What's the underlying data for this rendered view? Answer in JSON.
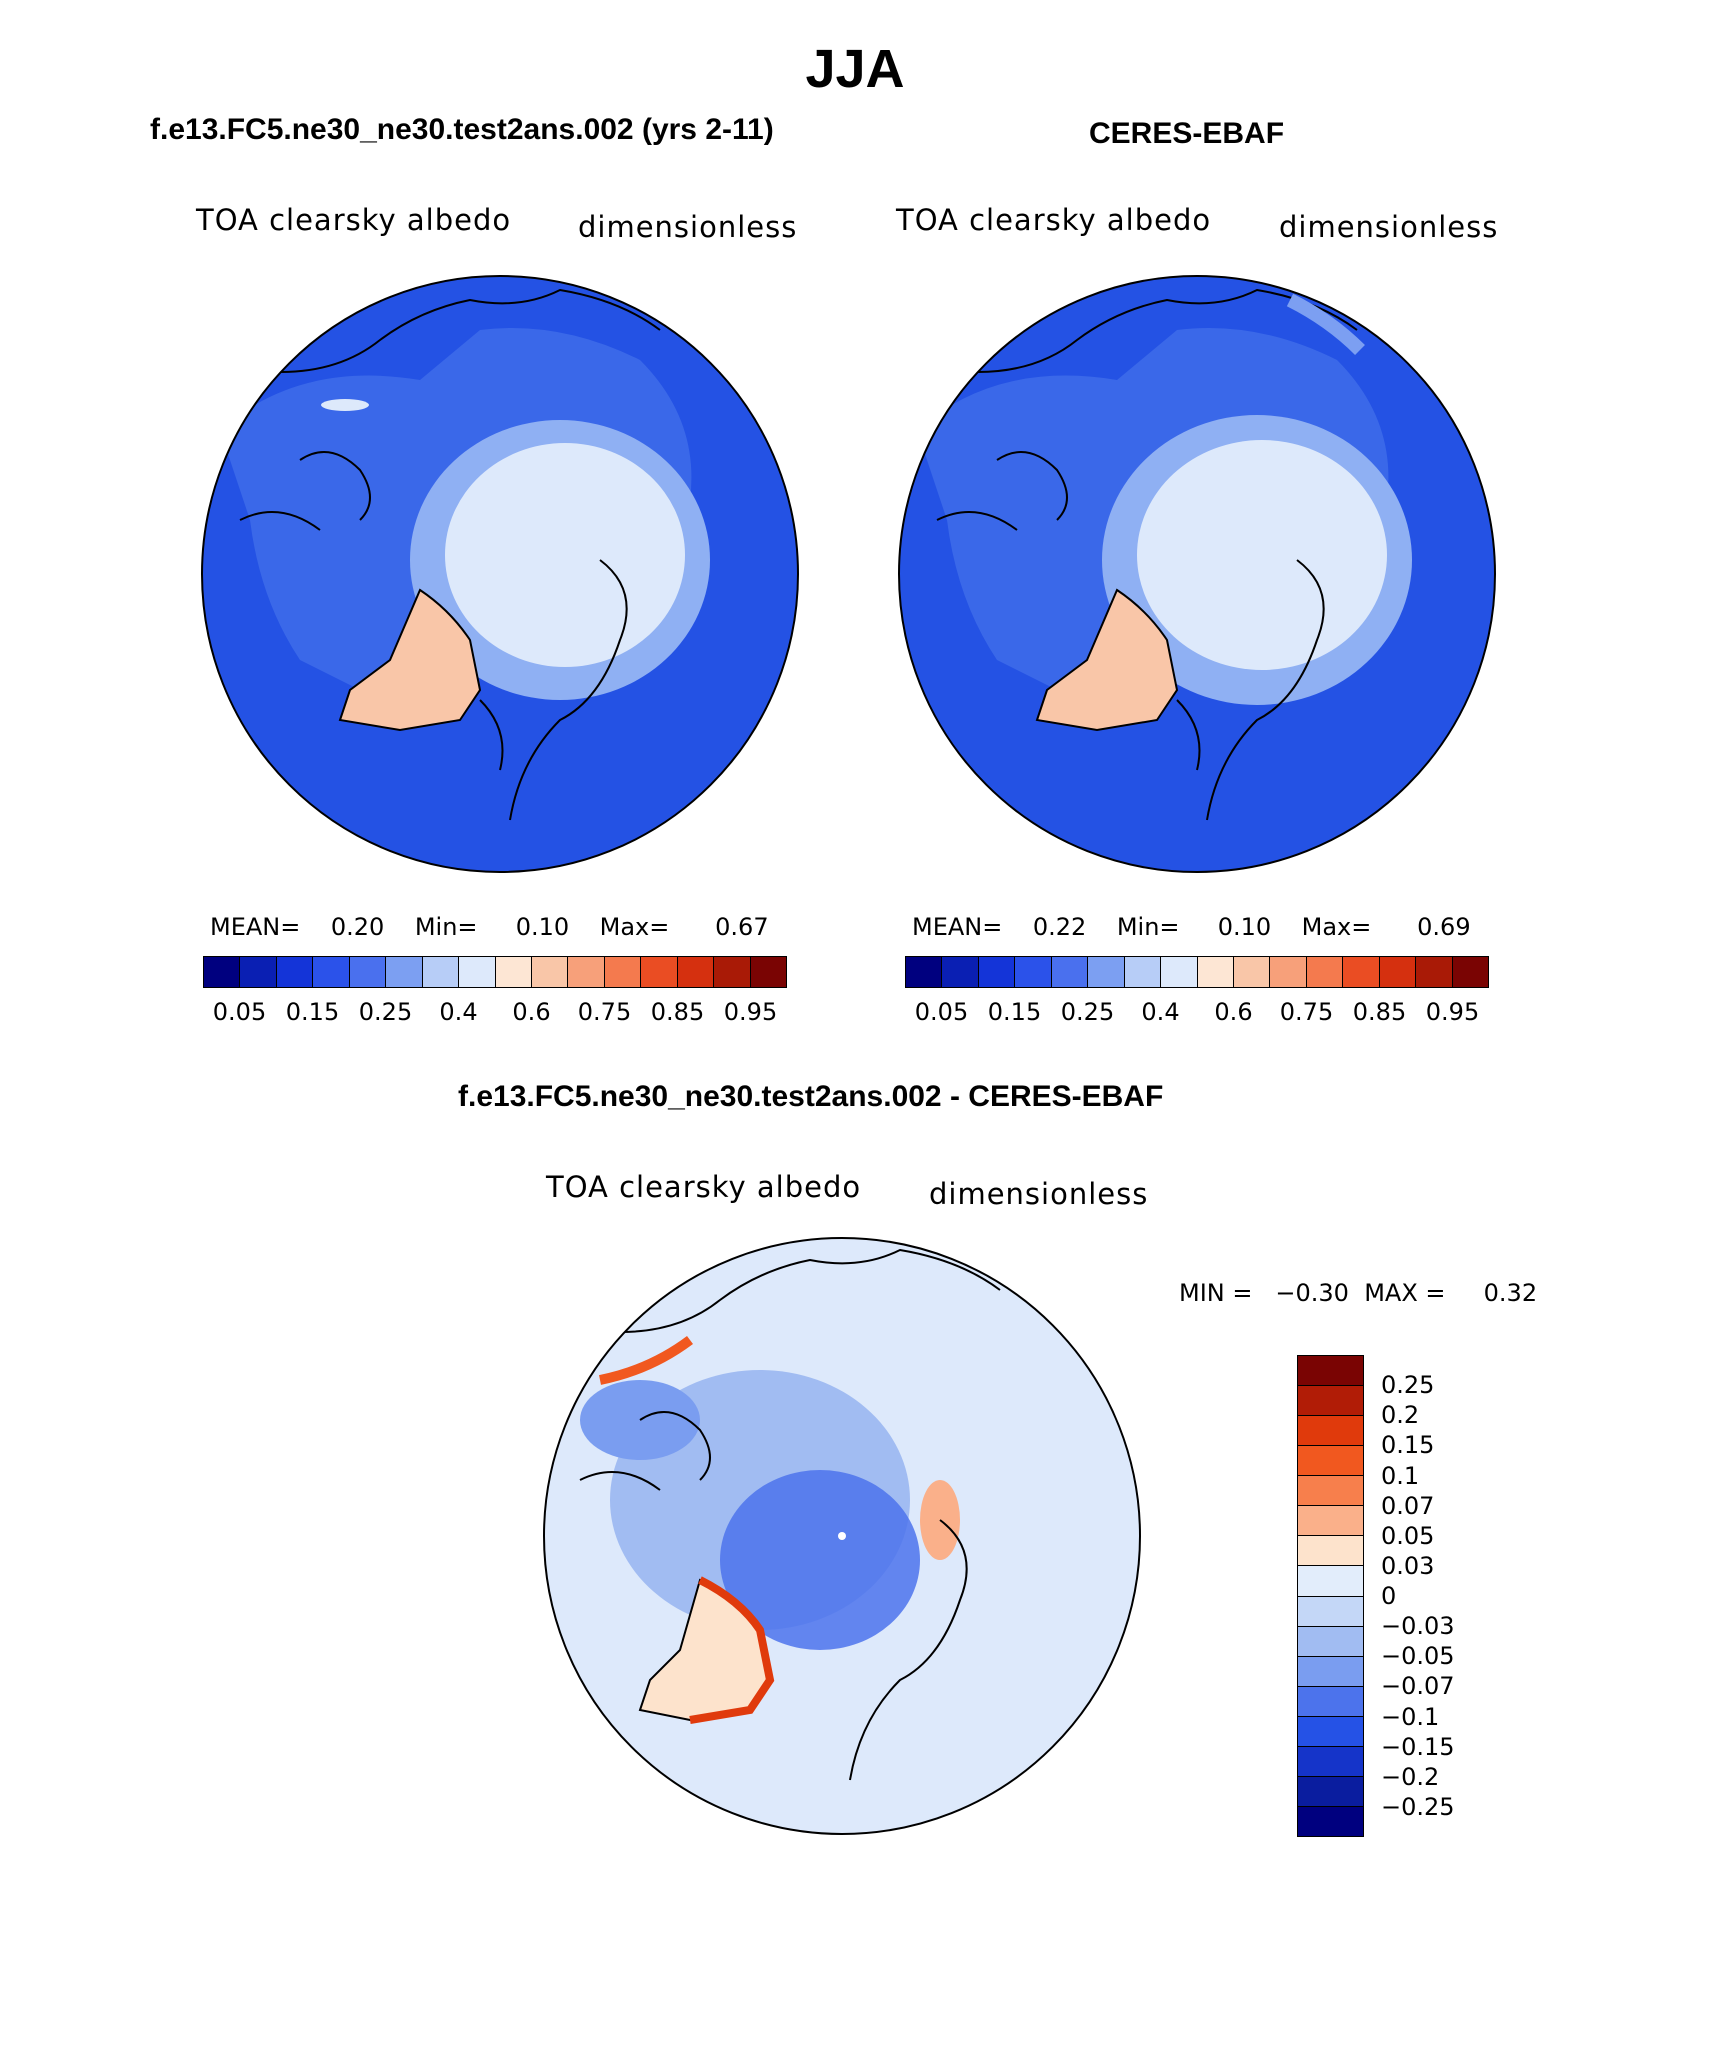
{
  "season": "JJA",
  "panels": [
    {
      "title": "f.e13.FC5.ne30_ne30.test2ans.002 (yrs 2-11)",
      "variable": "TOA clearsky albedo",
      "units": "dimensionless",
      "stats": {
        "mean_label": "MEAN=",
        "mean": "0.20",
        "min_label": "Min=",
        "min": "0.10",
        "max_label": "Max=",
        "max": "0.67"
      }
    },
    {
      "title": "CERES-EBAF",
      "variable": "TOA clearsky albedo",
      "units": "dimensionless",
      "stats": {
        "mean_label": "MEAN=",
        "mean": "0.22",
        "min_label": "Min=",
        "min": "0.10",
        "max_label": "Max=",
        "max": "0.69"
      }
    }
  ],
  "colorbar": {
    "colors": [
      "#00007f",
      "#0a1fb3",
      "#1434d8",
      "#2b52ea",
      "#4a70ee",
      "#7c9ff2",
      "#b7cdf7",
      "#dde9fb",
      "#fde6d4",
      "#f9c6a8",
      "#f7a07a",
      "#f47a4e",
      "#ea4d23",
      "#d5300f",
      "#a91a06",
      "#7a0403"
    ],
    "labels": [
      "0.05",
      "0.15",
      "0.25",
      "0.4",
      "0.6",
      "0.75",
      "0.85",
      "0.95"
    ]
  },
  "difference": {
    "title": "f.e13.FC5.ne30_ne30.test2ans.002 - CERES-EBAF",
    "variable": "TOA clearsky albedo",
    "units": "dimensionless",
    "minmax": {
      "min_label": "MIN =",
      "min": "−0.30",
      "max_label": "MAX =",
      "max": "0.32"
    },
    "colorbar": {
      "colors": [
        "#7a0403",
        "#b11c06",
        "#e03a0c",
        "#f1581f",
        "#f77f4c",
        "#fab08a",
        "#fde3cc",
        "#e2edfb",
        "#c4d7f7",
        "#a1bcf2",
        "#7a9df0",
        "#4c73ec",
        "#2552e6",
        "#1534c9",
        "#0a1d9f",
        "#00007f"
      ],
      "labels": [
        "0.25",
        "0.2",
        "0.15",
        "0.1",
        "0.07",
        "0.05",
        "0.03",
        "0",
        "−0.03",
        "−0.05",
        "−0.07",
        "−0.1",
        "−0.15",
        "−0.2",
        "−0.25"
      ]
    }
  },
  "fields": {
    "model": [
      {
        "role": "ocean",
        "value": 0.15
      },
      {
        "role": "mid-latitude land",
        "value": 0.25
      },
      {
        "role": "arctic ice",
        "value": 0.4
      },
      {
        "role": "greenland",
        "value": 0.6
      }
    ],
    "obs": [
      {
        "role": "ocean",
        "value": 0.15
      },
      {
        "role": "mid-latitude land",
        "value": 0.25
      },
      {
        "role": "arctic ice",
        "value": 0.4
      },
      {
        "role": "greenland",
        "value": 0.6
      }
    ],
    "diff": [
      {
        "role": "background",
        "value": -0.03
      },
      {
        "role": "arctic negative",
        "value": -0.1
      },
      {
        "role": "greenland margin",
        "value": 0.15
      }
    ]
  }
}
